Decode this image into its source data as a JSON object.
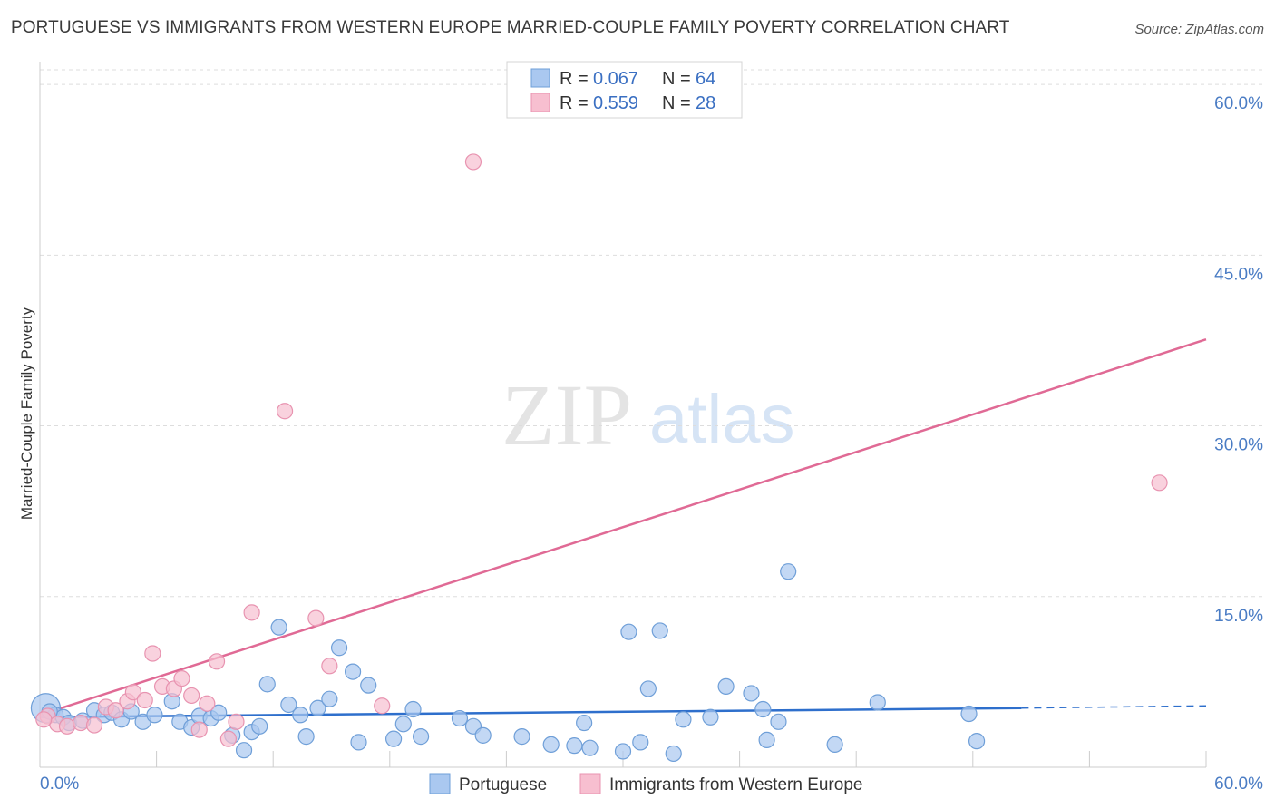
{
  "header": {
    "title": "PORTUGUESE VS IMMIGRANTS FROM WESTERN EUROPE MARRIED-COUPLE FAMILY POVERTY CORRELATION CHART",
    "source": "Source: ZipAtlas.com"
  },
  "watermark": {
    "zip": "ZIP",
    "atlas": "atlas"
  },
  "legend": {
    "r_label": "R =",
    "n_label": "N =",
    "rows": [
      {
        "r": "0.067",
        "n": "64"
      },
      {
        "r": "0.559",
        "n": "28"
      }
    ]
  },
  "bottom_legend": [
    "Portuguese",
    "Immigrants from Western Europe"
  ],
  "colors": {
    "blue_fill": "#aac8f0",
    "blue_stroke": "#6f9fd8",
    "blue_line": "#2e6fcc",
    "pink_fill": "#f7bfd0",
    "pink_stroke": "#e893b0",
    "pink_line": "#e06a95",
    "tick_label": "#4a7cc4",
    "grid": "#dddddd"
  },
  "chart_data": {
    "type": "scatter",
    "title": "PORTUGUESE VS IMMIGRANTS FROM WESTERN EUROPE MARRIED-COUPLE FAMILY POVERTY CORRELATION CHART",
    "xlabel": "",
    "ylabel": "Married-Couple Family Poverty",
    "xlim": [
      0,
      60
    ],
    "ylim": [
      0,
      62
    ],
    "x_tick_labels": [
      "0.0%",
      "60.0%"
    ],
    "y_ticks": [
      15,
      30,
      45,
      60
    ],
    "y_tick_labels": [
      "15.0%",
      "30.0%",
      "45.0%",
      "60.0%"
    ],
    "grid": true,
    "legend_position": "top-center",
    "series": [
      {
        "name": "Portuguese",
        "r": 0.067,
        "n": 64,
        "points": [
          [
            0.3,
            5.2
          ],
          [
            0.8,
            4.6
          ],
          [
            1.2,
            4.4
          ],
          [
            1.5,
            3.9
          ],
          [
            2.2,
            4.1
          ],
          [
            2.8,
            5.0
          ],
          [
            3.3,
            4.6
          ],
          [
            3.7,
            4.8
          ],
          [
            4.2,
            4.2
          ],
          [
            4.7,
            4.9
          ],
          [
            5.3,
            4.0
          ],
          [
            5.9,
            4.6
          ],
          [
            6.8,
            5.8
          ],
          [
            7.2,
            4.0
          ],
          [
            7.8,
            3.5
          ],
          [
            8.2,
            4.5
          ],
          [
            8.8,
            4.3
          ],
          [
            9.2,
            4.8
          ],
          [
            9.9,
            2.8
          ],
          [
            10.5,
            1.5
          ],
          [
            10.9,
            3.1
          ],
          [
            11.3,
            3.6
          ],
          [
            11.7,
            7.3
          ],
          [
            12.3,
            12.3
          ],
          [
            12.8,
            5.5
          ],
          [
            13.4,
            4.6
          ],
          [
            13.7,
            2.7
          ],
          [
            14.3,
            5.2
          ],
          [
            14.9,
            6.0
          ],
          [
            15.4,
            10.5
          ],
          [
            16.1,
            8.4
          ],
          [
            16.4,
            2.2
          ],
          [
            16.9,
            7.2
          ],
          [
            18.2,
            2.5
          ],
          [
            18.7,
            3.8
          ],
          [
            19.2,
            5.1
          ],
          [
            19.6,
            2.7
          ],
          [
            21.6,
            4.3
          ],
          [
            22.3,
            3.6
          ],
          [
            22.8,
            2.8
          ],
          [
            24.8,
            2.7
          ],
          [
            26.3,
            2.0
          ],
          [
            27.5,
            1.9
          ],
          [
            28.0,
            3.9
          ],
          [
            28.3,
            1.7
          ],
          [
            30.0,
            1.4
          ],
          [
            30.3,
            11.9
          ],
          [
            30.9,
            2.2
          ],
          [
            31.3,
            6.9
          ],
          [
            31.9,
            12.0
          ],
          [
            33.1,
            4.2
          ],
          [
            34.5,
            4.4
          ],
          [
            35.3,
            7.1
          ],
          [
            36.6,
            6.5
          ],
          [
            37.2,
            5.1
          ],
          [
            37.4,
            2.4
          ],
          [
            38.0,
            4.0
          ],
          [
            38.5,
            17.2
          ],
          [
            40.9,
            2.0
          ],
          [
            43.1,
            5.7
          ],
          [
            47.8,
            4.7
          ],
          [
            48.2,
            2.3
          ],
          [
            32.6,
            1.2
          ],
          [
            0.5,
            4.9
          ]
        ],
        "trend": {
          "x_start": 0,
          "y_start": 4.4,
          "x_end": 50.5,
          "y_end": 5.2,
          "dashed_to_x": 60,
          "dashed_to_y": 5.4
        }
      },
      {
        "name": "Immigrants from Western Europe",
        "r": 0.559,
        "n": 28,
        "points": [
          [
            0.4,
            4.5
          ],
          [
            0.9,
            3.8
          ],
          [
            1.4,
            3.6
          ],
          [
            2.1,
            3.9
          ],
          [
            2.8,
            3.7
          ],
          [
            3.4,
            5.3
          ],
          [
            3.9,
            5.0
          ],
          [
            4.5,
            5.8
          ],
          [
            4.8,
            6.6
          ],
          [
            5.4,
            5.9
          ],
          [
            5.8,
            10.0
          ],
          [
            6.3,
            7.1
          ],
          [
            6.9,
            6.9
          ],
          [
            7.3,
            7.8
          ],
          [
            7.8,
            6.3
          ],
          [
            8.2,
            3.3
          ],
          [
            8.6,
            5.6
          ],
          [
            9.1,
            9.3
          ],
          [
            9.7,
            2.5
          ],
          [
            10.1,
            4.0
          ],
          [
            10.9,
            13.6
          ],
          [
            12.6,
            31.3
          ],
          [
            14.2,
            13.1
          ],
          [
            14.9,
            8.9
          ],
          [
            17.6,
            5.4
          ],
          [
            22.3,
            53.2
          ],
          [
            57.6,
            25.0
          ],
          [
            0.2,
            4.2
          ]
        ],
        "trend": {
          "x_start": 0,
          "y_start": 4.6,
          "x_end": 60,
          "y_end": 37.6
        }
      }
    ]
  }
}
